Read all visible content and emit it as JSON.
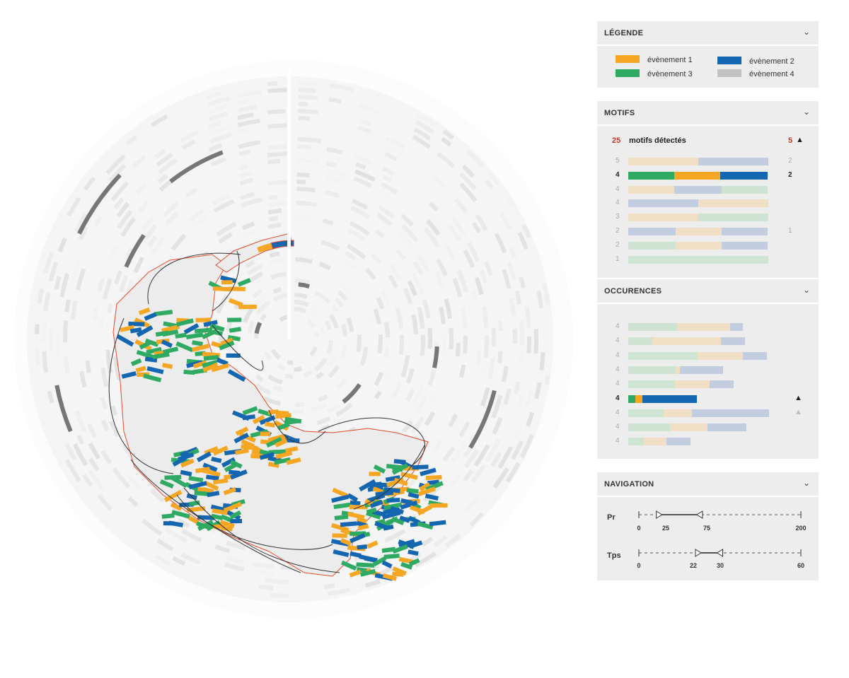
{
  "colors": {
    "ev1": "#f5a623",
    "ev2": "#1466b0",
    "ev3": "#2eaa62",
    "ev4": "#c2c2c2",
    "outline": "#e64a2e"
  },
  "legend": {
    "title": "LÉGENDE",
    "items": [
      {
        "label": "évènement 1",
        "color": "#f5a623"
      },
      {
        "label": "évènement 2",
        "color": "#1466b0"
      },
      {
        "label": "évènement 3",
        "color": "#2eaa62"
      },
      {
        "label": "évènement 4",
        "color": "#c2c2c2"
      }
    ]
  },
  "motifs": {
    "title": "MOTIFS",
    "count": "25",
    "count_label": "motifs détectés",
    "sort_value": "5",
    "sort_icon": "▲",
    "rows": [
      {
        "n": "5",
        "right": "2",
        "selected": false,
        "segs": [
          [
            "ev1",
            0.5
          ],
          [
            "ev2",
            0.5
          ]
        ]
      },
      {
        "n": "4",
        "right": "2",
        "selected": true,
        "segs": [
          [
            "ev3",
            0.33
          ],
          [
            "ev1",
            0.33
          ],
          [
            "ev2",
            0.34
          ]
        ]
      },
      {
        "n": "4",
        "right": "",
        "selected": false,
        "segs": [
          [
            "ev1",
            0.33
          ],
          [
            "ev2",
            0.34
          ],
          [
            "ev3",
            0.33
          ]
        ]
      },
      {
        "n": "4",
        "right": "",
        "selected": false,
        "segs": [
          [
            "ev2",
            0.5
          ],
          [
            "ev1",
            0.5
          ]
        ]
      },
      {
        "n": "3",
        "right": "",
        "selected": false,
        "segs": [
          [
            "ev1",
            0.5
          ],
          [
            "ev3",
            0.5
          ]
        ]
      },
      {
        "n": "2",
        "right": "1",
        "selected": false,
        "segs": [
          [
            "ev2",
            0.34
          ],
          [
            "ev1",
            0.33
          ],
          [
            "ev2",
            0.33
          ]
        ]
      },
      {
        "n": "2",
        "right": "",
        "selected": false,
        "segs": [
          [
            "ev3",
            0.34
          ],
          [
            "ev1",
            0.33
          ],
          [
            "ev2",
            0.33
          ]
        ]
      },
      {
        "n": "1",
        "right": "",
        "selected": false,
        "segs": [
          [
            "ev3",
            1.0
          ]
        ]
      }
    ]
  },
  "occurences": {
    "title": "OCCURENCES",
    "rows": [
      {
        "n": "4",
        "selected": false,
        "mark": "",
        "segs": [
          [
            "ev3",
            0.35
          ],
          [
            "ev1",
            0.38
          ],
          [
            "ev2",
            0.09
          ]
        ]
      },
      {
        "n": "4",
        "selected": false,
        "mark": "",
        "segs": [
          [
            "ev3",
            0.17
          ],
          [
            "ev1",
            0.49
          ],
          [
            "ev2",
            0.17
          ]
        ]
      },
      {
        "n": "4",
        "selected": false,
        "mark": "",
        "segs": [
          [
            "ev3",
            0.49
          ],
          [
            "ev1",
            0.33
          ],
          [
            "ev2",
            0.17
          ]
        ]
      },
      {
        "n": "4",
        "selected": false,
        "mark": "",
        "segs": [
          [
            "ev3",
            0.34
          ],
          [
            "ev1",
            0.03
          ],
          [
            "ev2",
            0.31
          ]
        ]
      },
      {
        "n": "4",
        "selected": false,
        "mark": "",
        "segs": [
          [
            "ev3",
            0.33
          ],
          [
            "ev1",
            0.25
          ],
          [
            "ev2",
            0.17
          ]
        ]
      },
      {
        "n": "4",
        "selected": true,
        "mark": "▲",
        "segs": [
          [
            "ev3",
            0.05
          ],
          [
            "ev1",
            0.05
          ],
          [
            "ev2",
            0.39
          ]
        ]
      },
      {
        "n": "4",
        "selected": false,
        "mark": "▲",
        "segs": [
          [
            "ev3",
            0.25
          ],
          [
            "ev1",
            0.2
          ],
          [
            "ev2",
            0.55
          ]
        ]
      },
      {
        "n": "4",
        "selected": false,
        "mark": "",
        "segs": [
          [
            "ev3",
            0.3
          ],
          [
            "ev1",
            0.27
          ],
          [
            "ev2",
            0.28
          ]
        ]
      },
      {
        "n": "4",
        "selected": false,
        "mark": "",
        "segs": [
          [
            "ev3",
            0.11
          ],
          [
            "ev1",
            0.16
          ],
          [
            "ev2",
            0.17
          ]
        ]
      }
    ]
  },
  "navigation": {
    "title": "NAVIGATION",
    "sliders": [
      {
        "label": "Pr",
        "min": 0,
        "max": 200,
        "low": 25,
        "high": 75,
        "min_label": "0",
        "max_label": "200",
        "low_label": "25",
        "high_label": "75"
      },
      {
        "label": "Tps",
        "min": 0,
        "max": 60,
        "low": 22,
        "high": 30,
        "min_label": "0",
        "max_label": "60",
        "low_label": "22",
        "high_label": "30"
      }
    ]
  }
}
